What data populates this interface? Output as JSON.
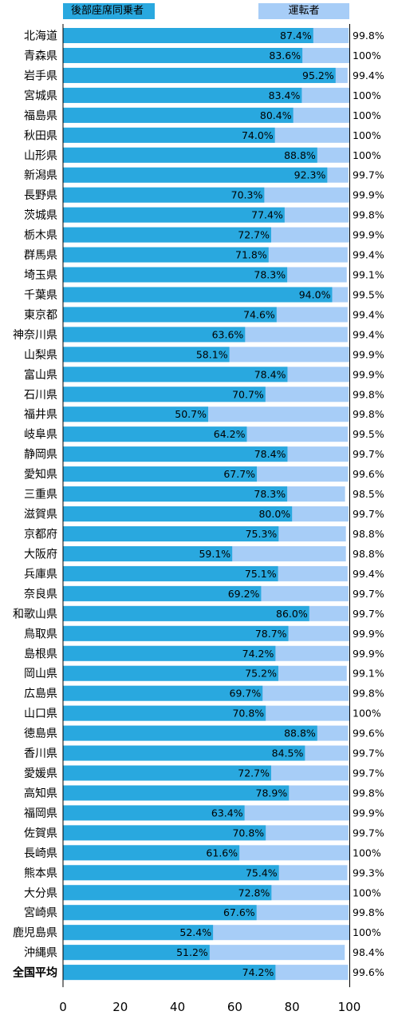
{
  "chart_data": {
    "type": "bar",
    "orientation": "horizontal",
    "stacked": "overlay",
    "title": "",
    "xlabel": "",
    "ylabel": "",
    "xlim": [
      0,
      100
    ],
    "xticks": [
      "0",
      "20",
      "40",
      "60",
      "80",
      "100"
    ],
    "legend_position": "top",
    "categories": [
      "北海道",
      "青森県",
      "岩手県",
      "宮城県",
      "福島県",
      "秋田県",
      "山形県",
      "新潟県",
      "長野県",
      "茨城県",
      "栃木県",
      "群馬県",
      "埼玉県",
      "千葉県",
      "東京都",
      "神奈川県",
      "山梨県",
      "富山県",
      "石川県",
      "福井県",
      "岐阜県",
      "静岡県",
      "愛知県",
      "三重県",
      "滋賀県",
      "京都府",
      "大阪府",
      "兵庫県",
      "奈良県",
      "和歌山県",
      "鳥取県",
      "島根県",
      "岡山県",
      "広島県",
      "山口県",
      "徳島県",
      "香川県",
      "愛媛県",
      "高知県",
      "福岡県",
      "佐賀県",
      "長崎県",
      "熊本県",
      "大分県",
      "宮崎県",
      "鹿児島県",
      "沖縄県",
      "全国平均"
    ],
    "bold_category": "全国平均",
    "series": [
      {
        "name": "運転者",
        "color": "#a7cdf7",
        "values": [
          99.8,
          100,
          99.4,
          100,
          100,
          100,
          100,
          99.7,
          99.9,
          99.8,
          99.9,
          99.4,
          99.1,
          99.5,
          99.4,
          99.4,
          99.9,
          99.9,
          99.8,
          99.8,
          99.5,
          99.7,
          99.6,
          98.5,
          99.7,
          98.8,
          98.8,
          99.4,
          99.7,
          99.7,
          99.9,
          99.9,
          99.1,
          99.8,
          100,
          99.6,
          99.7,
          99.7,
          99.8,
          99.9,
          99.7,
          100,
          99.3,
          100,
          99.8,
          100,
          98.4,
          99.6
        ],
        "labels": [
          "99.8%",
          "100%",
          "99.4%",
          "100%",
          "100%",
          "100%",
          "100%",
          "99.7%",
          "99.9%",
          "99.8%",
          "99.9%",
          "99.4%",
          "99.1%",
          "99.5%",
          "99.4%",
          "99.4%",
          "99.9%",
          "99.9%",
          "99.8%",
          "99.8%",
          "99.5%",
          "99.7%",
          "99.6%",
          "98.5%",
          "99.7%",
          "98.8%",
          "98.8%",
          "99.4%",
          "99.7%",
          "99.7%",
          "99.9%",
          "99.9%",
          "99.1%",
          "99.8%",
          "100%",
          "99.6%",
          "99.7%",
          "99.7%",
          "99.8%",
          "99.9%",
          "99.7%",
          "100%",
          "99.3%",
          "100%",
          "99.8%",
          "100%",
          "98.4%",
          "99.6%"
        ]
      },
      {
        "name": "後部座席同乗者",
        "color": "#29a8df",
        "values": [
          87.4,
          83.6,
          95.2,
          83.4,
          80.4,
          74.0,
          88.8,
          92.3,
          70.3,
          77.4,
          72.7,
          71.8,
          78.3,
          94.0,
          74.6,
          63.6,
          58.1,
          78.4,
          70.7,
          50.7,
          64.2,
          78.4,
          67.7,
          78.3,
          80.0,
          75.3,
          59.1,
          75.1,
          69.2,
          86.0,
          78.7,
          74.2,
          75.2,
          69.7,
          70.8,
          88.8,
          84.5,
          72.7,
          78.9,
          63.4,
          70.8,
          61.6,
          75.4,
          72.8,
          67.6,
          52.4,
          51.2,
          74.2
        ],
        "labels": [
          "87.4%",
          "83.6%",
          "95.2%",
          "83.4%",
          "80.4%",
          "74.0%",
          "88.8%",
          "92.3%",
          "70.3%",
          "77.4%",
          "72.7%",
          "71.8%",
          "78.3%",
          "94.0%",
          "74.6%",
          "63.6%",
          "58.1%",
          "78.4%",
          "70.7%",
          "50.7%",
          "64.2%",
          "78.4%",
          "67.7%",
          "78.3%",
          "80.0%",
          "75.3%",
          "59.1%",
          "75.1%",
          "69.2%",
          "86.0%",
          "78.7%",
          "74.2%",
          "75.2%",
          "69.7%",
          "70.8%",
          "88.8%",
          "84.5%",
          "72.7%",
          "78.9%",
          "63.4%",
          "70.8%",
          "61.6%",
          "75.4%",
          "72.8%",
          "67.6%",
          "52.4%",
          "51.2%",
          "74.2%"
        ]
      }
    ]
  }
}
